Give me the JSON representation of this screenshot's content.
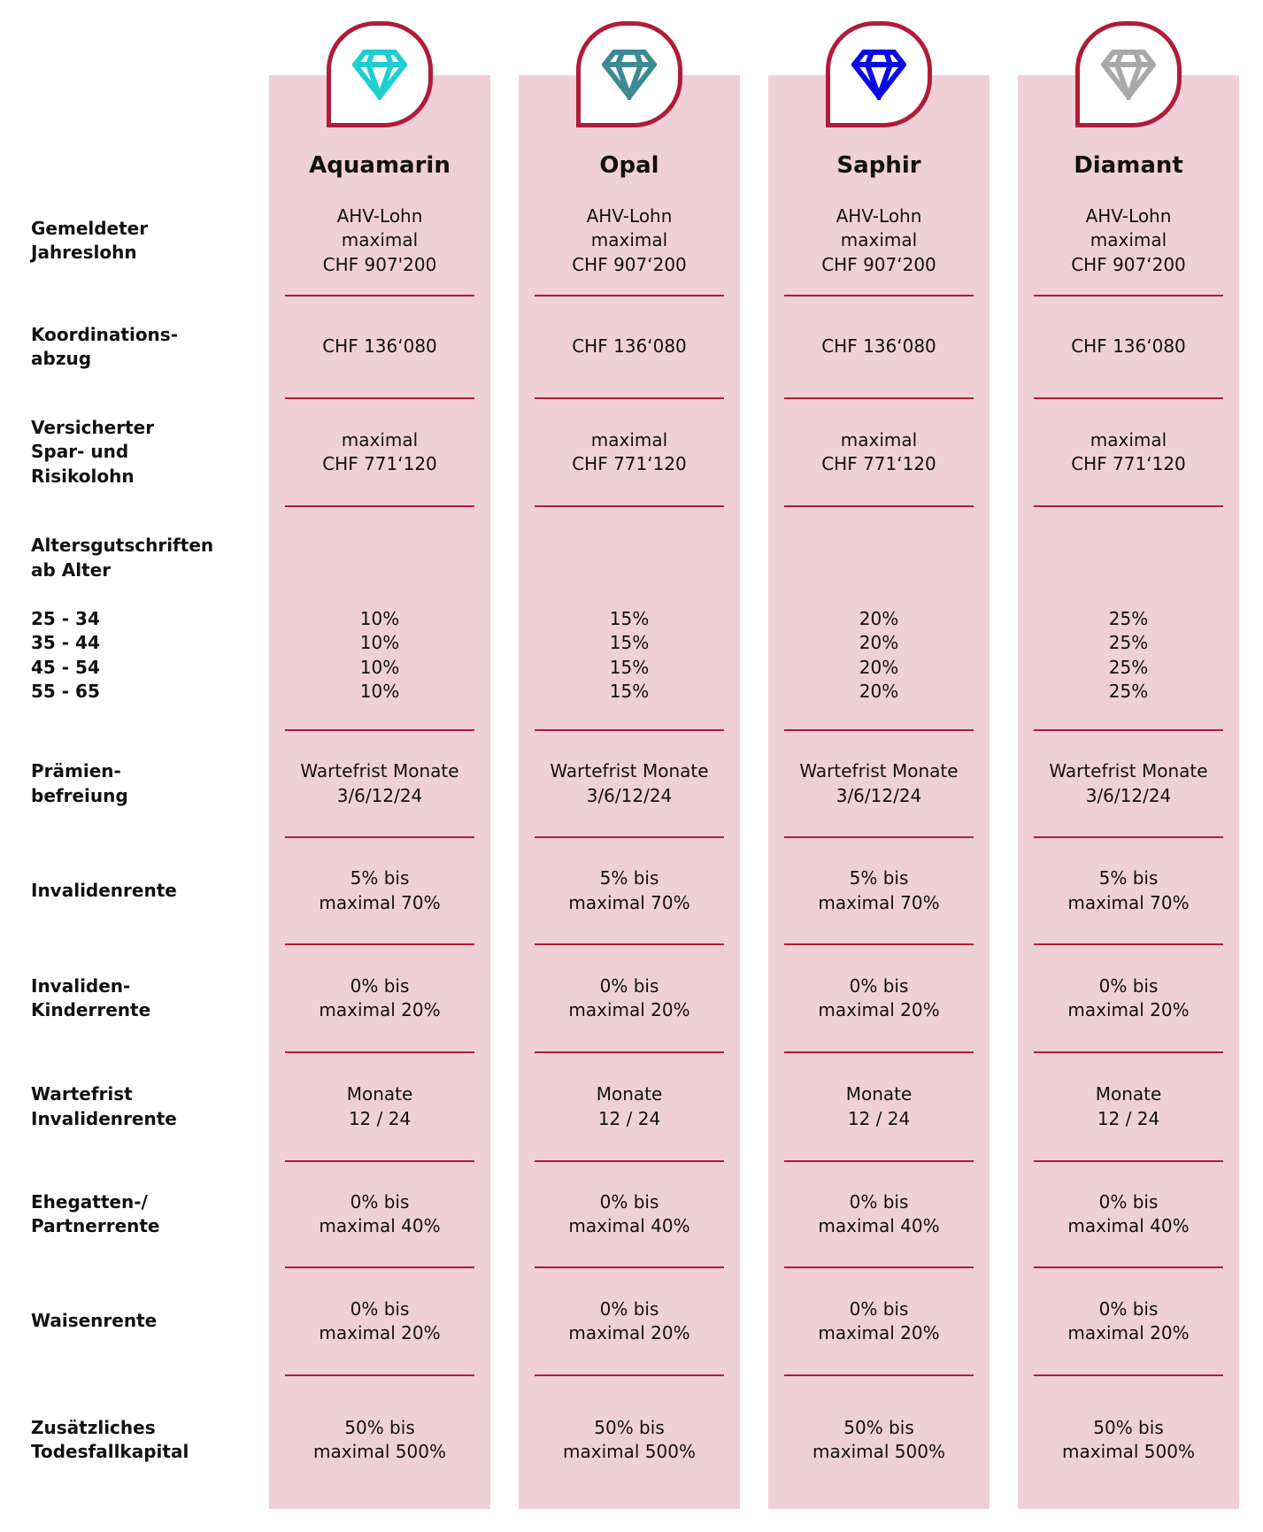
{
  "accent_color": "#b01c3a",
  "column_background": "#f0d0d7",
  "plans": [
    {
      "name": "Aquamarin",
      "icon": "diamond-icon",
      "color": "#1ecfd0"
    },
    {
      "name": "Opal",
      "icon": "diamond-icon",
      "color": "#3d8a93"
    },
    {
      "name": "Saphir",
      "icon": "diamond-icon",
      "color": "#0a0ae6"
    },
    {
      "name": "Diamant",
      "icon": "diamond-icon",
      "color": "#a8a8a8"
    }
  ],
  "rows": [
    {
      "label": [
        "Gemeldeter",
        "Jahreslohn"
      ],
      "values": [
        [
          "AHV-Lohn",
          "maximal",
          "CHF 907'200"
        ],
        [
          "AHV-Lohn",
          "maximal",
          "CHF 907‘200"
        ],
        [
          "AHV-Lohn",
          "maximal",
          "CHF 907‘200"
        ],
        [
          "AHV-Lohn",
          "maximal",
          "CHF 907‘200"
        ]
      ]
    },
    {
      "label": [
        "Koordinations-",
        "abzug"
      ],
      "values": [
        [
          "CHF 136‘080"
        ],
        [
          "CHF 136‘080"
        ],
        [
          "CHF 136‘080"
        ],
        [
          "CHF 136‘080"
        ]
      ]
    },
    {
      "label": [
        "Versicherter",
        "Spar- und",
        "Risikolohn"
      ],
      "values": [
        [
          "maximal",
          "CHF 771‘120"
        ],
        [
          "maximal",
          "CHF 771‘120"
        ],
        [
          "maximal",
          "CHF 771‘120"
        ],
        [
          "maximal",
          "CHF 771‘120"
        ]
      ]
    },
    {
      "label": [
        "Altersgutschriften",
        "ab Alter",
        "",
        "25 - 34",
        "35 - 44",
        "45 - 54",
        "55 - 65"
      ],
      "values": [
        [
          "",
          "",
          "",
          "10%",
          "10%",
          "10%",
          "10%"
        ],
        [
          "",
          "",
          "",
          "15%",
          "15%",
          "15%",
          "15%"
        ],
        [
          "",
          "",
          "",
          "20%",
          "20%",
          "20%",
          "20%"
        ],
        [
          "",
          "",
          "",
          "25%",
          "25%",
          "25%",
          "25%"
        ]
      ]
    },
    {
      "label": [
        "Prämien-",
        "befreiung"
      ],
      "values": [
        [
          "Wartefrist Monate",
          "3/6/12/24"
        ],
        [
          "Wartefrist Monate",
          "3/6/12/24"
        ],
        [
          "Wartefrist Monate",
          "3/6/12/24"
        ],
        [
          "Wartefrist Monate",
          "3/6/12/24"
        ]
      ]
    },
    {
      "label": [
        "Invalidenrente"
      ],
      "values": [
        [
          "5% bis",
          "maximal 70%"
        ],
        [
          "5% bis",
          "maximal 70%"
        ],
        [
          "5% bis",
          "maximal 70%"
        ],
        [
          "5% bis",
          "maximal 70%"
        ]
      ]
    },
    {
      "label": [
        "Invaliden-",
        "Kinderrente"
      ],
      "values": [
        [
          "0% bis",
          "maximal 20%"
        ],
        [
          "0% bis",
          "maximal 20%"
        ],
        [
          "0% bis",
          "maximal 20%"
        ],
        [
          "0% bis",
          "maximal 20%"
        ]
      ]
    },
    {
      "label": [
        "Wartefrist",
        "Invalidenrente"
      ],
      "values": [
        [
          "Monate",
          "12 / 24"
        ],
        [
          "Monate",
          "12 / 24"
        ],
        [
          "Monate",
          "12 / 24"
        ],
        [
          "Monate",
          "12 / 24"
        ]
      ]
    },
    {
      "label": [
        "Ehegatten-/",
        "Partnerrente"
      ],
      "values": [
        [
          "0% bis",
          "maximal 40%"
        ],
        [
          "0% bis",
          "maximal 40%"
        ],
        [
          "0% bis",
          "maximal 40%"
        ],
        [
          "0% bis",
          "maximal 40%"
        ]
      ]
    },
    {
      "label": [
        "Waisenrente"
      ],
      "values": [
        [
          "0% bis",
          "maximal 20%"
        ],
        [
          "0% bis",
          "maximal 20%"
        ],
        [
          "0% bis",
          "maximal 20%"
        ],
        [
          "0% bis",
          "maximal 20%"
        ]
      ]
    },
    {
      "label": [
        "Zusätzliches",
        "Todesfallkapital"
      ],
      "values": [
        [
          "50% bis",
          "maximal 500%"
        ],
        [
          "50% bis",
          "maximal 500%"
        ],
        [
          "50% bis",
          "maximal 500%"
        ],
        [
          "50% bis",
          "maximal 500%"
        ]
      ]
    }
  ]
}
